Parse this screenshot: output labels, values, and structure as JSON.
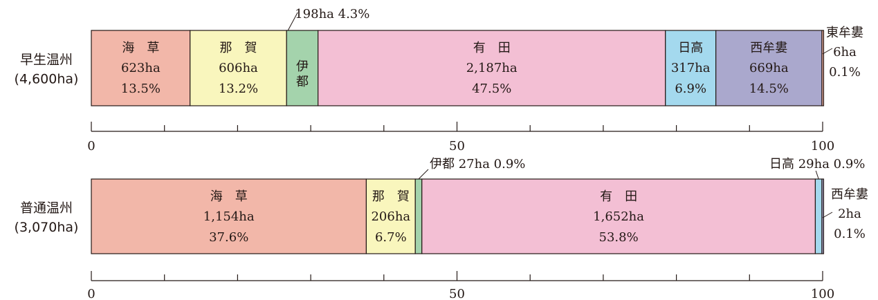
{
  "chart_data": [
    {
      "type": "bar",
      "orientation": "horizontal-stacked-100",
      "label": "早生温州",
      "total": "(4,600ha)",
      "xlim": [
        0,
        100
      ],
      "tick_labels": [
        "0",
        "50",
        "100"
      ],
      "segments": [
        {
          "name": "海　草",
          "area": "623ha",
          "pct_label": "13.5%",
          "value": 13.5,
          "color": "#f2b7a9",
          "label_mode": "inside3"
        },
        {
          "name": "那　賀",
          "area": "606ha",
          "pct_label": "13.2%",
          "value": 13.2,
          "color": "#f9f6bd",
          "label_mode": "inside3"
        },
        {
          "name": "伊都",
          "area": "198ha",
          "pct_label": "4.3%",
          "value": 4.3,
          "color": "#a4d3ac",
          "label_mode": "vertical-callout",
          "callout": "198ha 4.3%"
        },
        {
          "name": "有　田",
          "area": "2,187ha",
          "pct_label": "47.5%",
          "value": 47.5,
          "color": "#f3bfd4",
          "label_mode": "inside3"
        },
        {
          "name": "日高",
          "area": "317ha",
          "pct_label": "6.9%",
          "value": 6.9,
          "color": "#a4d9ee",
          "label_mode": "inside3"
        },
        {
          "name": "西牟婁",
          "area": "669ha",
          "pct_label": "14.5%",
          "value": 14.5,
          "color": "#aaa8cd",
          "label_mode": "inside3"
        },
        {
          "name": "東牟婁",
          "area": "6ha",
          "pct_label": "0.1%",
          "value": 0.1,
          "color": "#f2b7a9",
          "label_mode": "outside-right"
        }
      ]
    },
    {
      "type": "bar",
      "orientation": "horizontal-stacked-100",
      "label": "普通温州",
      "total": "(3,070ha)",
      "xlim": [
        0,
        100
      ],
      "tick_labels": [
        "0",
        "50",
        "100"
      ],
      "segments": [
        {
          "name": "海　草",
          "area": "1,154ha",
          "pct_label": "37.6%",
          "value": 37.6,
          "color": "#f2b7a9",
          "label_mode": "inside3"
        },
        {
          "name": "那　賀",
          "area": "206ha",
          "pct_label": "6.7%",
          "value": 6.7,
          "color": "#f9f6bd",
          "label_mode": "inside3"
        },
        {
          "name": "伊都",
          "area": "27ha",
          "pct_label": "0.9%",
          "value": 0.9,
          "color": "#a4d3ac",
          "label_mode": "callout-above",
          "callout": "伊都  27ha  0.9%"
        },
        {
          "name": "有　田",
          "area": "1,652ha",
          "pct_label": "53.8%",
          "value": 53.8,
          "color": "#f3bfd4",
          "label_mode": "inside3"
        },
        {
          "name": "日高",
          "area": "29ha",
          "pct_label": "0.9%",
          "value": 0.9,
          "color": "#a4d9ee",
          "label_mode": "callout-above",
          "callout": "日高 29ha  0.9%"
        },
        {
          "name": "西牟婁",
          "area": "2ha",
          "pct_label": "0.1%",
          "value": 0.1,
          "color": "#aaa8cd",
          "label_mode": "outside-right"
        }
      ]
    }
  ]
}
